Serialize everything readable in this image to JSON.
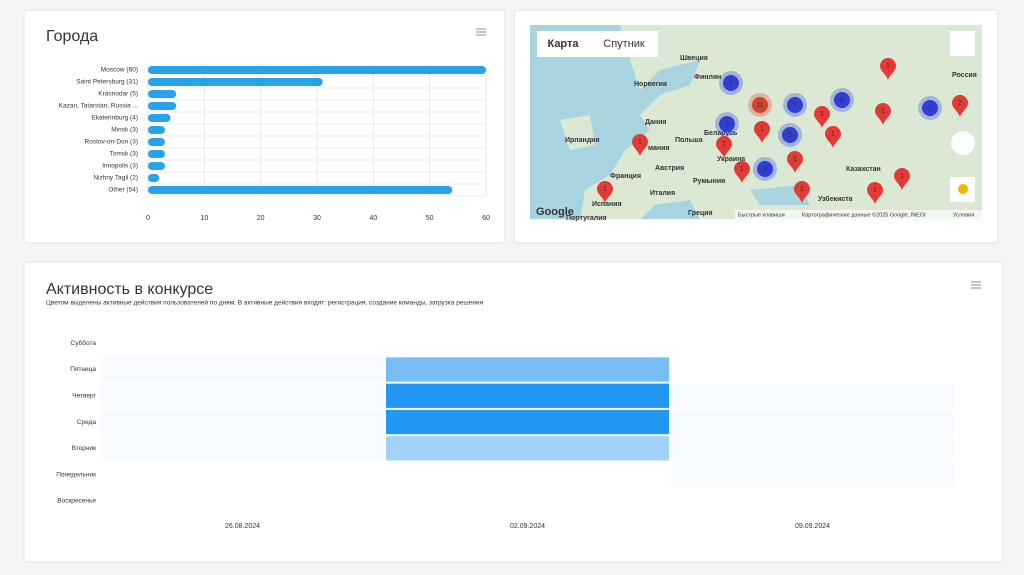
{
  "chart_data": [
    {
      "type": "bar",
      "orientation": "horizontal",
      "title": "Города",
      "categories": [
        "Moscow (60)",
        "Saint Petersburg (31)",
        "Krasnodar (5)",
        "Kazan, Tatarstan, Russia ...",
        "Ekaterinburg (4)",
        "Minsk (3)",
        "Rostov-on-Don (3)",
        "Tomsk (3)",
        "Innopolis (3)",
        "Nizhny Tagil (2)",
        "Other (54)"
      ],
      "values": [
        60,
        31,
        5,
        5,
        4,
        3,
        3,
        3,
        3,
        2,
        54
      ],
      "color": "#29a3e8",
      "xlim": [
        0,
        60
      ],
      "xticks": [
        0,
        10,
        20,
        30,
        40,
        50,
        60
      ],
      "grid": true
    },
    {
      "type": "heatmap",
      "title": "Активность в конкурсе",
      "subtitle": "Цветом выделены активные действия пользователей по дням. В активные действия входят: регистрация, создание команды, загрузка решения",
      "categories": [
        "26.08.2024",
        "02.09.2024",
        "09.09.2024"
      ],
      "colorscale": [
        "#f7fbff",
        "#2196f3"
      ],
      "series": [
        {
          "name": "Суббота",
          "values": [
            null,
            null,
            null
          ]
        },
        {
          "name": "Пятница",
          "values": [
            0,
            3,
            null
          ]
        },
        {
          "name": "Четверг",
          "values": [
            0,
            5,
            0
          ]
        },
        {
          "name": "Среда",
          "values": [
            0,
            5,
            0
          ]
        },
        {
          "name": "Вторник",
          "values": [
            0,
            2,
            0
          ]
        },
        {
          "name": "Понедельник",
          "values": [
            null,
            null,
            0
          ]
        },
        {
          "name": "Воскресенье",
          "values": [
            null,
            null,
            null
          ]
        }
      ]
    }
  ],
  "map": {
    "tabs": [
      "Карта",
      "Спутник"
    ],
    "places": [
      "Швеция",
      "Финлян",
      "Норвегия",
      "Россия",
      "Дания",
      "Беларусь",
      "Ирландия",
      "мания",
      "Польша",
      "Украина",
      "Франция",
      "Австрия",
      "Румыния",
      "Казахстан",
      "Италия",
      "Испания",
      "Греция",
      "Узбекиста",
      "Португалия"
    ],
    "markers": [
      2,
      7,
      6,
      3,
      2,
      3,
      3,
      11,
      1,
      2,
      1,
      1,
      1,
      1,
      1,
      1,
      1,
      1,
      1,
      1,
      1,
      1
    ],
    "footer": [
      "Google",
      "Быстрые клавиши",
      "Картографические данные ©2025 Google, INEGI",
      "Условия"
    ]
  }
}
